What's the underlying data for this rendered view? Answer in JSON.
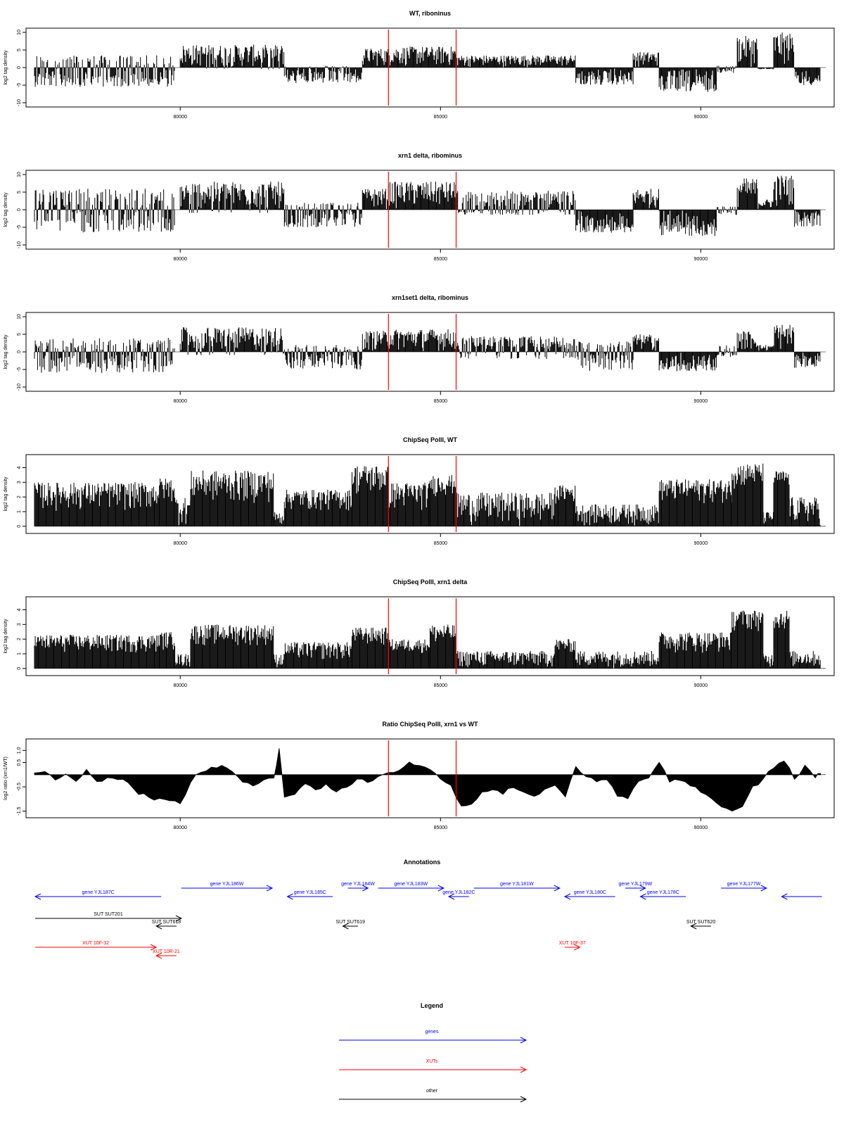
{
  "chart_data": [
    {
      "type": "bar",
      "title": "WT, riboninus",
      "ylabel": "log2 tag density",
      "yticks": [
        "10",
        "5",
        "0",
        "-5",
        "-10"
      ],
      "ylim": [
        -10,
        10
      ],
      "xlim": [
        77200,
        92400
      ],
      "xticks": [
        80000,
        85000,
        90000
      ],
      "marker_lines_x": [
        84000,
        85300
      ],
      "marker_color": "#ff0000",
      "profile": [
        {
          "x": [
            77200,
            79900
          ],
          "y": [
            -5.5,
            3.5
          ]
        },
        {
          "x": [
            80000,
            82000
          ],
          "y": [
            -0.5,
            6.5
          ]
        },
        {
          "x": [
            82000,
            83500
          ],
          "y": [
            -4.5,
            0.5
          ]
        },
        {
          "x": [
            83500,
            84000
          ],
          "y": [
            0,
            5.5
          ]
        },
        {
          "x": [
            84000,
            85300
          ],
          "y": [
            0,
            6
          ]
        },
        {
          "x": [
            85300,
            87600
          ],
          "y": [
            0,
            3.5
          ]
        },
        {
          "x": [
            87600,
            88700
          ],
          "y": [
            -5,
            0
          ]
        },
        {
          "x": [
            88700,
            89200
          ],
          "y": [
            0,
            4.5
          ]
        },
        {
          "x": [
            89200,
            90300
          ],
          "y": [
            -7,
            0
          ]
        },
        {
          "x": [
            90300,
            90700
          ],
          "y": [
            -1.5,
            0.5
          ]
        },
        {
          "x": [
            90700,
            91100
          ],
          "y": [
            0,
            9
          ]
        },
        {
          "x": [
            91100,
            91400
          ],
          "y": [
            -0.5,
            0
          ]
        },
        {
          "x": [
            91400,
            91800
          ],
          "y": [
            0,
            10
          ]
        },
        {
          "x": [
            91800,
            92300
          ],
          "y": [
            -5,
            0
          ]
        }
      ]
    },
    {
      "type": "bar",
      "title": "xrn1 delta, ribominus",
      "ylabel": "log2 tag density",
      "yticks": [
        "10",
        "5",
        "0",
        "-5",
        "-10"
      ],
      "ylim": [
        -10,
        10
      ],
      "xlim": [
        77200,
        92400
      ],
      "xticks": [
        80000,
        85000,
        90000
      ],
      "marker_lines_x": [
        84000,
        85300
      ],
      "marker_color": "#ff0000",
      "profile": [
        {
          "x": [
            77200,
            79900
          ],
          "y": [
            -6.5,
            6
          ]
        },
        {
          "x": [
            80000,
            82000
          ],
          "y": [
            -1,
            8
          ]
        },
        {
          "x": [
            82000,
            83500
          ],
          "y": [
            -5,
            2
          ]
        },
        {
          "x": [
            83500,
            84000
          ],
          "y": [
            0,
            6
          ]
        },
        {
          "x": [
            84000,
            85300
          ],
          "y": [
            0,
            8
          ]
        },
        {
          "x": [
            85300,
            87600
          ],
          "y": [
            -1.5,
            5.5
          ]
        },
        {
          "x": [
            87600,
            88700
          ],
          "y": [
            -6.5,
            0
          ]
        },
        {
          "x": [
            88700,
            89200
          ],
          "y": [
            0,
            6
          ]
        },
        {
          "x": [
            89200,
            90300
          ],
          "y": [
            -7.5,
            0
          ]
        },
        {
          "x": [
            90300,
            90700
          ],
          "y": [
            -1.5,
            1
          ]
        },
        {
          "x": [
            90700,
            91100
          ],
          "y": [
            0,
            9
          ]
        },
        {
          "x": [
            91100,
            91400
          ],
          "y": [
            0,
            3
          ]
        },
        {
          "x": [
            91400,
            91800
          ],
          "y": [
            0,
            10
          ]
        },
        {
          "x": [
            91800,
            92300
          ],
          "y": [
            -5,
            0
          ]
        }
      ]
    },
    {
      "type": "bar",
      "title": "xrn1set1 delta, ribominus",
      "ylabel": "log2 tag density",
      "yticks": [
        "10",
        "5",
        "0",
        "-5",
        "-10"
      ],
      "ylim": [
        -10,
        10
      ],
      "xlim": [
        77200,
        92400
      ],
      "xticks": [
        80000,
        85000,
        90000
      ],
      "marker_lines_x": [
        84000,
        85300
      ],
      "marker_color": "#ff0000",
      "profile": [
        {
          "x": [
            77200,
            79900
          ],
          "y": [
            -6,
            4
          ]
        },
        {
          "x": [
            80000,
            82000
          ],
          "y": [
            -1,
            7
          ]
        },
        {
          "x": [
            82000,
            83500
          ],
          "y": [
            -5,
            2
          ]
        },
        {
          "x": [
            83500,
            84000
          ],
          "y": [
            0,
            6
          ]
        },
        {
          "x": [
            84000,
            85300
          ],
          "y": [
            0,
            6.5
          ]
        },
        {
          "x": [
            85300,
            87600
          ],
          "y": [
            -2,
            4.5
          ]
        },
        {
          "x": [
            87600,
            88700
          ],
          "y": [
            -5.5,
            3
          ]
        },
        {
          "x": [
            88700,
            89200
          ],
          "y": [
            0,
            5
          ]
        },
        {
          "x": [
            89200,
            90300
          ],
          "y": [
            -5.5,
            0
          ]
        },
        {
          "x": [
            90300,
            90700
          ],
          "y": [
            -1.5,
            2
          ]
        },
        {
          "x": [
            90700,
            91100
          ],
          "y": [
            0,
            6
          ]
        },
        {
          "x": [
            91100,
            91400
          ],
          "y": [
            0,
            2
          ]
        },
        {
          "x": [
            91400,
            91800
          ],
          "y": [
            0,
            8
          ]
        },
        {
          "x": [
            91800,
            92300
          ],
          "y": [
            -4.5,
            0
          ]
        }
      ]
    },
    {
      "type": "bar",
      "title": "ChipSeq PolII, WT",
      "ylabel": "log2 tag density",
      "yticks": [
        "0",
        "1",
        "2",
        "3",
        "4"
      ],
      "ylim": [
        -0.2,
        4.6
      ],
      "xlim": [
        77200,
        92400
      ],
      "xticks": [
        80000,
        85000,
        90000
      ],
      "marker_lines_x": [
        84000,
        85300
      ],
      "marker_color": "#ff0000",
      "profile": [
        {
          "x": [
            77200,
            79600
          ],
          "y": [
            1,
            3
          ]
        },
        {
          "x": [
            79600,
            79900
          ],
          "y": [
            1.5,
            3.3
          ]
        },
        {
          "x": [
            79900,
            80200
          ],
          "y": [
            0,
            2
          ]
        },
        {
          "x": [
            80200,
            81800
          ],
          "y": [
            1.5,
            3.8
          ]
        },
        {
          "x": [
            81800,
            82000
          ],
          "y": [
            0,
            1
          ]
        },
        {
          "x": [
            82000,
            83300
          ],
          "y": [
            1,
            2.5
          ]
        },
        {
          "x": [
            83300,
            84000
          ],
          "y": [
            2,
            4.2
          ]
        },
        {
          "x": [
            84000,
            84800
          ],
          "y": [
            1,
            3
          ]
        },
        {
          "x": [
            84800,
            85300
          ],
          "y": [
            2,
            3.5
          ]
        },
        {
          "x": [
            85300,
            87200
          ],
          "y": [
            0,
            2.3
          ]
        },
        {
          "x": [
            87200,
            87600
          ],
          "y": [
            1.5,
            2.8
          ]
        },
        {
          "x": [
            87600,
            89200
          ],
          "y": [
            0,
            1.5
          ]
        },
        {
          "x": [
            89200,
            90600
          ],
          "y": [
            1.5,
            3.2
          ]
        },
        {
          "x": [
            90600,
            91200
          ],
          "y": [
            2.5,
            4.3
          ]
        },
        {
          "x": [
            91200,
            91400
          ],
          "y": [
            0,
            1
          ]
        },
        {
          "x": [
            91400,
            91700
          ],
          "y": [
            2.5,
            3.8
          ]
        },
        {
          "x": [
            91700,
            92300
          ],
          "y": [
            0,
            2
          ]
        }
      ]
    },
    {
      "type": "bar",
      "title": "ChipSeq PolII, xrn1 delta",
      "ylabel": "log2 tag density",
      "yticks": [
        "0",
        "1",
        "2",
        "3",
        "4"
      ],
      "ylim": [
        -0.2,
        4.6
      ],
      "xlim": [
        77200,
        92400
      ],
      "xticks": [
        80000,
        85000,
        90000
      ],
      "marker_lines_x": [
        84000,
        85300
      ],
      "marker_color": "#ff0000",
      "profile": [
        {
          "x": [
            77200,
            79600
          ],
          "y": [
            1,
            2.3
          ]
        },
        {
          "x": [
            79600,
            79900
          ],
          "y": [
            1.2,
            2.5
          ]
        },
        {
          "x": [
            79900,
            80200
          ],
          "y": [
            0,
            1
          ]
        },
        {
          "x": [
            80200,
            81800
          ],
          "y": [
            1.5,
            3
          ]
        },
        {
          "x": [
            81800,
            82000
          ],
          "y": [
            0,
            1
          ]
        },
        {
          "x": [
            82000,
            83300
          ],
          "y": [
            0.5,
            1.8
          ]
        },
        {
          "x": [
            83300,
            84000
          ],
          "y": [
            1.5,
            2.8
          ]
        },
        {
          "x": [
            84000,
            84800
          ],
          "y": [
            1,
            2
          ]
        },
        {
          "x": [
            84800,
            85300
          ],
          "y": [
            1.5,
            3
          ]
        },
        {
          "x": [
            85300,
            87200
          ],
          "y": [
            0,
            1.2
          ]
        },
        {
          "x": [
            87200,
            87600
          ],
          "y": [
            1,
            2
          ]
        },
        {
          "x": [
            87600,
            89200
          ],
          "y": [
            0,
            1.2
          ]
        },
        {
          "x": [
            89200,
            90600
          ],
          "y": [
            1,
            2.5
          ]
        },
        {
          "x": [
            90600,
            91200
          ],
          "y": [
            2.5,
            4
          ]
        },
        {
          "x": [
            91200,
            91400
          ],
          "y": [
            0,
            1
          ]
        },
        {
          "x": [
            91400,
            91700
          ],
          "y": [
            2.5,
            4
          ]
        },
        {
          "x": [
            91700,
            92300
          ],
          "y": [
            0,
            1.2
          ]
        }
      ]
    },
    {
      "type": "area",
      "title": "Ratio ChipSeq PolII, xrn1 vs WT",
      "ylabel": "log2 ratio (xrn1/WT)",
      "yticks": [
        "1.0",
        "0.5",
        "-0.5",
        "-1.5"
      ],
      "ylim": [
        -1.6,
        1.3
      ],
      "xlim": [
        77200,
        92400
      ],
      "xticks": [
        80000,
        85000,
        90000
      ],
      "marker_lines_x": [
        84000,
        85300
      ],
      "marker_color": "#ff0000",
      "x": [
        77200,
        77400,
        77600,
        77800,
        78000,
        78200,
        78400,
        78600,
        78800,
        79000,
        79200,
        79400,
        79600,
        79800,
        80000,
        80200,
        80400,
        80600,
        80800,
        81000,
        81200,
        81400,
        81600,
        81800,
        81900,
        82000,
        82200,
        82400,
        82600,
        82800,
        83000,
        83200,
        83400,
        83600,
        83800,
        84000,
        84200,
        84400,
        84600,
        84800,
        85000,
        85200,
        85400,
        85600,
        85800,
        86000,
        86200,
        86400,
        86600,
        86800,
        87000,
        87200,
        87400,
        87600,
        87800,
        88000,
        88200,
        88400,
        88600,
        88800,
        89000,
        89200,
        89400,
        89600,
        89800,
        90000,
        90200,
        90400,
        90600,
        90800,
        91000,
        91200,
        91400,
        91600,
        91800,
        92000,
        92200,
        92300
      ],
      "y": [
        0.05,
        0.1,
        -0.2,
        0.05,
        -0.3,
        0.2,
        -0.25,
        -0.1,
        -0.2,
        -0.3,
        -0.8,
        -0.9,
        -1.0,
        -1.1,
        -1.2,
        -0.3,
        0.1,
        0.3,
        0.4,
        0.1,
        -0.3,
        -0.5,
        -0.2,
        -0.1,
        1.1,
        -0.9,
        -0.8,
        -0.4,
        -0.6,
        -0.4,
        -0.7,
        -0.5,
        -0.2,
        -0.3,
        -0.1,
        0.1,
        0.2,
        0.5,
        0.4,
        0.2,
        -0.2,
        -0.4,
        -1.3,
        -1.2,
        -0.7,
        -0.6,
        -0.8,
        -0.5,
        -0.7,
        -0.9,
        -0.6,
        -0.4,
        -0.9,
        0.3,
        -0.1,
        -0.3,
        -0.2,
        -0.9,
        -1.0,
        -0.3,
        -0.1,
        0.5,
        -0.3,
        -0.2,
        -0.5,
        -0.7,
        -1.0,
        -1.3,
        -1.5,
        -1.3,
        -0.5,
        -0.2,
        0.3,
        0.6,
        -0.2,
        0.4,
        -0.1,
        0.05
      ]
    }
  ],
  "annotations": {
    "title": "Annotations",
    "items": [
      {
        "label": "gene YJL187C",
        "color": "#0000ff",
        "x1": 77200,
        "x2": 79700,
        "dir": "left",
        "row": 1
      },
      {
        "label": "gene YJL186W",
        "color": "#0000ff",
        "x1": 80100,
        "x2": 81900,
        "dir": "right",
        "row": 0
      },
      {
        "label": "gene YJL185C",
        "color": "#0000ff",
        "x1": 82200,
        "x2": 83100,
        "dir": "left",
        "row": 1
      },
      {
        "label": "gene YJL184W",
        "color": "#0000ff",
        "x1": 83400,
        "x2": 83800,
        "dir": "right",
        "row": 0
      },
      {
        "label": "gene YJL183W",
        "color": "#0000ff",
        "x1": 84000,
        "x2": 85300,
        "dir": "right",
        "row": 0
      },
      {
        "label": "gene YJL182C",
        "color": "#0000ff",
        "x1": 85400,
        "x2": 85800,
        "dir": "left",
        "row": 1
      },
      {
        "label": "gene YJL181W",
        "color": "#0000ff",
        "x1": 85900,
        "x2": 87600,
        "dir": "right",
        "row": 0
      },
      {
        "label": "gene YJL180C",
        "color": "#0000ff",
        "x1": 87700,
        "x2": 88700,
        "dir": "left",
        "row": 1
      },
      {
        "label": "gene YJL179W",
        "color": "#0000ff",
        "x1": 88900,
        "x2": 89300,
        "dir": "right",
        "row": 0
      },
      {
        "label": "gene YJL178C",
        "color": "#0000ff",
        "x1": 89200,
        "x2": 90100,
        "dir": "left",
        "row": 1
      },
      {
        "label": "gene YJL177W",
        "color": "#0000ff",
        "x1": 90800,
        "x2": 91700,
        "dir": "right",
        "row": 0
      },
      {
        "label": "",
        "color": "#0000ff",
        "x1": 92000,
        "x2": 92800,
        "dir": "left",
        "row": 1
      },
      {
        "label": "SUT SUT201",
        "color": "#000000",
        "x1": 77200,
        "x2": 80100,
        "dir": "right",
        "row": 2
      },
      {
        "label": "SUT SUT618",
        "color": "#000000",
        "x1": 79600,
        "x2": 80000,
        "dir": "left",
        "row": 3
      },
      {
        "label": "SUT SUT619",
        "color": "#000000",
        "x1": 83300,
        "x2": 83600,
        "dir": "left",
        "row": 3
      },
      {
        "label": "SUT SUT620",
        "color": "#000000",
        "x1": 90200,
        "x2": 90600,
        "dir": "left",
        "row": 3
      },
      {
        "label": "XUT 10F-32",
        "color": "#ff0000",
        "x1": 77200,
        "x2": 79600,
        "dir": "right",
        "row": 4
      },
      {
        "label": "XUT 10R-21",
        "color": "#ff0000",
        "x1": 79600,
        "x2": 80000,
        "dir": "left",
        "row": 5
      },
      {
        "label": "XUT 10F-37",
        "color": "#ff0000",
        "x1": 87700,
        "x2": 88000,
        "dir": "right",
        "row": 4
      }
    ]
  },
  "legend": {
    "title": "Legend",
    "items": [
      {
        "label": "genes",
        "color": "#0000ff"
      },
      {
        "label": "XUTs",
        "color": "#ff0000"
      },
      {
        "label": "other",
        "color": "#000000"
      }
    ]
  }
}
